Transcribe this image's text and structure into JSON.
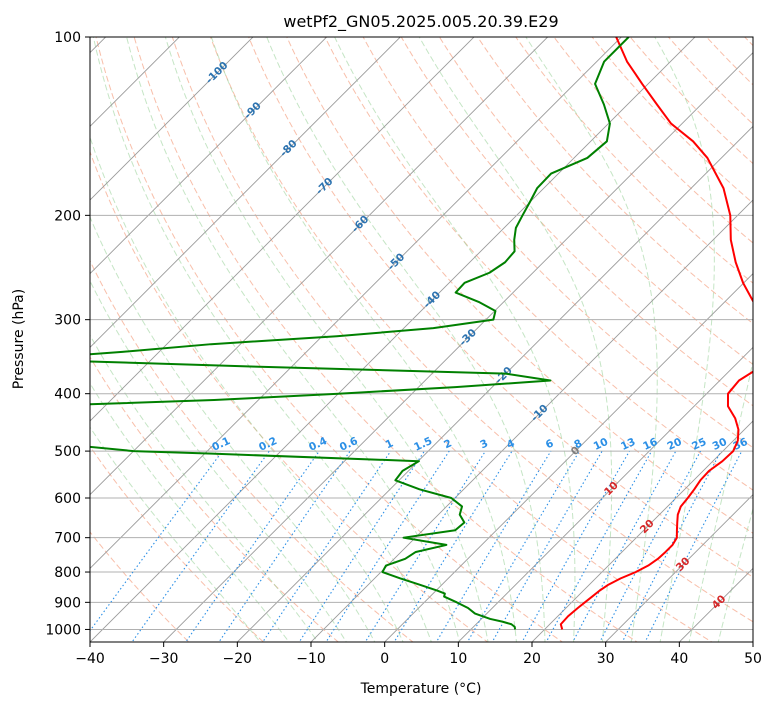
{
  "chart_data": {
    "type": "line",
    "subtype": "skew-T log-P diagram",
    "title": "wetPf2_GN05.2025.005.20.39.E29",
    "xlabel": "Temperature (°C)",
    "ylabel": "Pressure (hPa)",
    "xlim": [
      -40,
      50
    ],
    "ylim": [
      1050,
      100
    ],
    "y_scale": "log",
    "x_ticks": [
      "−40",
      "−30",
      "−20",
      "−10",
      "0",
      "10",
      "20",
      "30",
      "40",
      "50"
    ],
    "y_ticks": [
      "100",
      "200",
      "300",
      "400",
      "500",
      "600",
      "700",
      "800",
      "900",
      "1000"
    ],
    "grid": true,
    "isotherm_labels": [
      "-100",
      "-90",
      "-80",
      "-70",
      "-60",
      "-50",
      "-40",
      "-30",
      "-20",
      "-10",
      "0",
      "10",
      "20",
      "30",
      "40"
    ],
    "mixing_ratio_labels": [
      "0.1",
      "0.2",
      "0.4",
      "0.6",
      "1",
      "1.5",
      "2",
      "3",
      "4",
      "6",
      "8",
      "10",
      "13",
      "16",
      "20",
      "25",
      "30",
      "36"
    ],
    "mixing_ratio_label_pressure": 500,
    "series": [
      {
        "role": "temperature",
        "color": "#ff0000",
        "pressure": [
          1000,
          980,
          950,
          920,
          900,
          880,
          860,
          840,
          820,
          800,
          780,
          760,
          740,
          720,
          700,
          680,
          660,
          640,
          620,
          600,
          580,
          560,
          540,
          520,
          500,
          480,
          460,
          440,
          420,
          400,
          380,
          360,
          340,
          320,
          300,
          280,
          260,
          240,
          220,
          200,
          180,
          160,
          150,
          140,
          130,
          120,
          110,
          100
        ],
        "temperature": [
          22.4,
          21.5,
          21.4,
          21.6,
          21.8,
          22.0,
          22.2,
          22.6,
          23.4,
          24.6,
          25.4,
          25.8,
          25.9,
          25.9,
          25.5,
          24.5,
          23.5,
          22.5,
          21.8,
          21.6,
          21.3,
          20.9,
          20.8,
          21.3,
          21.4,
          20.6,
          19.2,
          17.2,
          14.6,
          12.9,
          12.6,
          13.7,
          13.5,
          11.3,
          7.8,
          3.9,
          -0.1,
          -3.9,
          -7.6,
          -11.0,
          -15.6,
          -21.9,
          -26.1,
          -31.5,
          -36.0,
          -40.8,
          -45.9,
          -50.7
        ]
      },
      {
        "role": "dewpoint",
        "color": "#008000",
        "pressure": [
          1000,
          990,
          980,
          970,
          960,
          940,
          920,
          900,
          880,
          870,
          860,
          840,
          820,
          800,
          780,
          760,
          740,
          720,
          700,
          680,
          660,
          640,
          620,
          600,
          580,
          560,
          540,
          520,
          505,
          500,
          480,
          460,
          440,
          420,
          410,
          400,
          390,
          380,
          370,
          360,
          350,
          340,
          330,
          320,
          310,
          300,
          290,
          280,
          270,
          260,
          250,
          240,
          230,
          220,
          210,
          200,
          190,
          180,
          170,
          160,
          150,
          140,
          130,
          120,
          110,
          100
        ],
        "temperature": [
          16.0,
          15.6,
          14.8,
          13.2,
          11.2,
          8.4,
          6.7,
          4.4,
          1.9,
          1.6,
          0.2,
          -3.1,
          -6.5,
          -9.8,
          -10.2,
          -8.5,
          -8.0,
          -4.8,
          -11.6,
          -5.6,
          -5.4,
          -7.1,
          -7.9,
          -10.5,
          -16.0,
          -20.5,
          -20.8,
          -19.9,
          -49.0,
          -60.0,
          -76.0,
          -80.0,
          -80.0,
          -80.0,
          -56.0,
          -40.0,
          -25.0,
          -13.0,
          -20.0,
          -55.0,
          -88.0,
          -75.0,
          -64.0,
          -48.0,
          -36.0,
          -29.0,
          -29.9,
          -33.4,
          -37.8,
          -37.9,
          -35.9,
          -35.2,
          -35.4,
          -37.0,
          -38.4,
          -39.2,
          -40.0,
          -40.9,
          -41.0,
          -38.2,
          -37.8,
          -39.8,
          -43.2,
          -47.2,
          -49.0,
          -49.0
        ]
      }
    ]
  }
}
